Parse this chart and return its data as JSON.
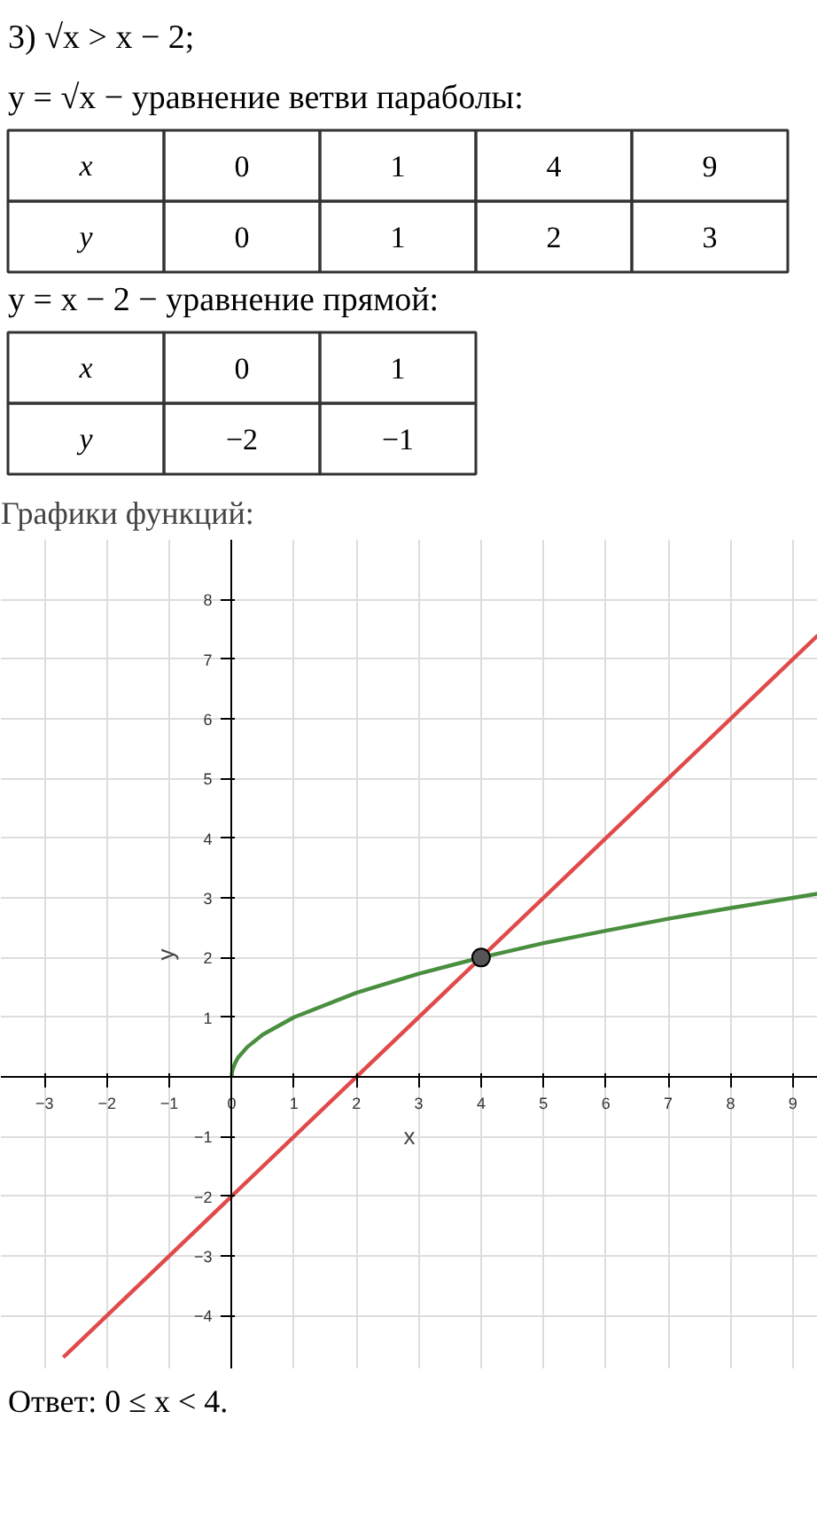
{
  "chart_data": {
    "type": "line",
    "title": "Графики функций:",
    "xlabel": "x",
    "ylabel": "y",
    "annotations": [
      "3) √x > x − 2;",
      "y = √x − уравнение ветви параболы:",
      "x\t0\t1\t4\t9",
      "y\t0\t1\t2\t3",
      "y = x − 2 − уравнение прямой:",
      "x\t0\t1",
      "y\t−2\t−1",
      "Ответ:  0 ≤ x < 4."
    ],
    "xlim": [
      -3.7,
      9.4
    ],
    "ylim": [
      -4.9,
      9.0
    ],
    "xticks": [
      -3,
      -2,
      -1,
      0,
      1,
      2,
      3,
      4,
      5,
      6,
      7,
      8,
      9
    ],
    "yticks": [
      -4,
      -3,
      -2,
      -1,
      {
        "value": 0,
        "label": null
      },
      1,
      2,
      3,
      4,
      5,
      6,
      7,
      8
    ],
    "grid": true,
    "series": [
      {
        "color": "#4a8f3f",
        "x": [
          0,
          0.01,
          0.05,
          0.1,
          0.25,
          0.5,
          1,
          2,
          3,
          4,
          5,
          6,
          7,
          8,
          9,
          9.4
        ],
        "values": [
          0,
          0.1,
          0.22,
          0.32,
          0.5,
          0.71,
          1,
          1.41,
          1.73,
          2,
          2.24,
          2.45,
          2.65,
          2.83,
          3,
          3.07
        ]
      },
      {
        "color": "#e04a4a",
        "x": [
          -2.7,
          9.4
        ],
        "values": [
          -4.7,
          7.4
        ]
      },
      {
        "type": "scatter",
        "color": "#555555",
        "marker": "circle",
        "x": [
          4
        ],
        "values": [
          2
        ]
      }
    ]
  }
}
